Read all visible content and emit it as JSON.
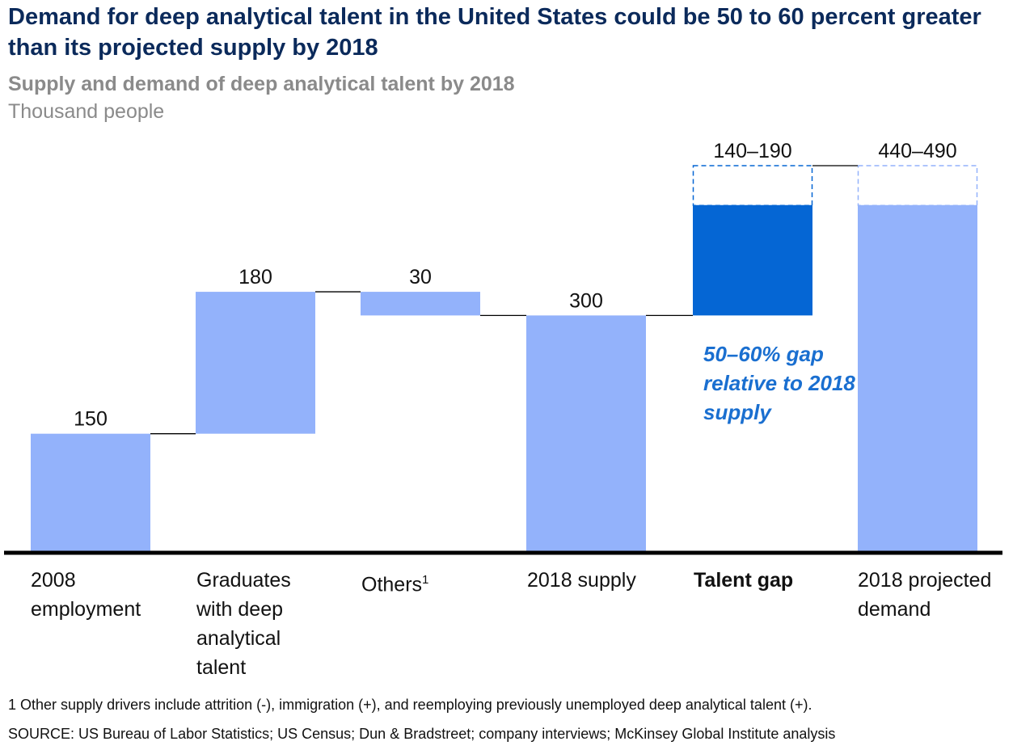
{
  "title": "Demand for deep analytical talent in the United States could be 50 to 60 percent greater than its projected supply by 2018",
  "subtitle": "Supply and demand of deep analytical talent by 2018",
  "unit": "Thousand people",
  "gap_note": "50–60% gap relative to 2018 supply",
  "footnote_marker": "1",
  "footnote": "1  Other supply drivers include attrition (-), immigration (+), and reemploying previously unemployed deep analytical talent (+).",
  "source": "SOURCE: US Bureau of Labor Statistics; US Census; Dun & Bradstreet; company interviews; McKinsey Global Institute analysis",
  "colors": {
    "bar": "#93b2fb",
    "gap": "#0566d4",
    "gap_text": "#1a6fd0",
    "title": "#0b2a5b",
    "subtitle": "#8a8a8a"
  },
  "chart_data": {
    "type": "bar",
    "subtype": "waterfall",
    "categories": [
      "2008 employment",
      "Graduates with deep analytical talent",
      "Others",
      "2018 supply",
      "Talent gap",
      "2018 projected demand"
    ],
    "labels": [
      "150",
      "180",
      "30",
      "300",
      "140–190",
      "440–490"
    ],
    "steps": [
      {
        "category": "2008 employment",
        "kind": "total",
        "start": 0,
        "end": 150
      },
      {
        "category": "Graduates with deep analytical talent",
        "kind": "increment",
        "start": 150,
        "end": 330
      },
      {
        "category": "Others",
        "kind": "decrement",
        "start": 330,
        "end": 300
      },
      {
        "category": "2018 supply",
        "kind": "total",
        "start": 0,
        "end": 300
      },
      {
        "category": "Talent gap",
        "kind": "range",
        "start": 300,
        "end_low": 440,
        "end_high": 490
      },
      {
        "category": "2018 projected demand",
        "kind": "range_total",
        "start": 0,
        "end_low": 440,
        "end_high": 490
      }
    ],
    "ylim": [
      0,
      490
    ],
    "grid": false,
    "legend": "none"
  }
}
